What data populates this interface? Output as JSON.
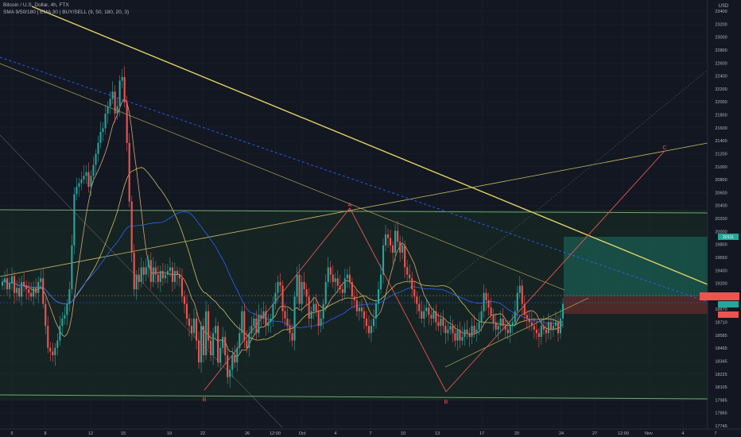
{
  "header": {
    "symbol_line": "Bitcoin / U.S. Dollar, 4h, FTX",
    "indicators_line": "SMA 9/50/180 | EMA 30 | BUY/SELL (9, 50, 180, 20, 3)"
  },
  "price_axis": {
    "currency": "USD",
    "ticks": [
      "23400",
      "23200",
      "23000",
      "22800",
      "22600",
      "22400",
      "22200",
      "22000",
      "21800",
      "21600",
      "21400",
      "21200",
      "21000",
      "20800",
      "20600",
      "20400",
      "20200",
      "20000",
      "19800",
      "19650",
      "19400",
      "19200",
      "19030",
      "18870",
      "18710",
      "18585",
      "18465",
      "18345",
      "18225",
      "18105",
      "17985",
      "17865",
      "17745"
    ],
    "badge_value": "20111"
  },
  "time_axis": {
    "labels": [
      "5",
      "8",
      "12",
      "15",
      "19",
      "22",
      "26",
      "12:00",
      "Oct",
      "4",
      "7",
      "10",
      "13",
      "17",
      "20",
      "24",
      "27",
      "12:00",
      "Nov",
      "4",
      "7"
    ]
  },
  "annotations": {
    "label_a": "A",
    "label_b1": "B",
    "label_b2": "B",
    "label_c": "C"
  },
  "colors": {
    "background": "#131722",
    "candle_up": "#26a69a",
    "candle_down": "#ef5350",
    "trendline": "#e2d463",
    "sma_fast": "#c0a050",
    "sma_slow": "#2962ff",
    "profit_zone": "#1a5c52",
    "loss_zone": "#5c2a2a"
  },
  "chart_data": {
    "type": "candlestick",
    "symbol": "Bitcoin / U.S. Dollar",
    "timeframe": "4h",
    "y_range": [
      17745,
      23400
    ],
    "closes": [
      19700,
      19750,
      19600,
      19680,
      19780,
      19550,
      19620,
      19500,
      19700,
      19650,
      19600,
      19550,
      19500,
      19620,
      19550,
      19700,
      19750,
      19400,
      19100,
      18800,
      18750,
      18700,
      18800,
      18900,
      19100,
      19200,
      19250,
      19400,
      19600,
      20200,
      20900,
      21000,
      21050,
      21100,
      21150,
      21200,
      21000,
      21150,
      21300,
      21450,
      21600,
      21750,
      21800,
      22000,
      22100,
      22200,
      22300,
      22000,
      22100,
      22450,
      22500,
      22150,
      21600,
      20800,
      20100,
      19600,
      19800,
      19700,
      19900,
      19800,
      19900,
      20000,
      19700,
      19900,
      19800,
      19700,
      19850,
      19750,
      19800,
      19850,
      19900,
      19700,
      19850,
      19800,
      19750,
      19500,
      19400,
      19200,
      19100,
      19000,
      19200,
      18900,
      18600,
      19100,
      18700,
      19300,
      18900,
      18700,
      19000,
      19100,
      18600,
      18800,
      18950,
      18700,
      18400,
      18500,
      18700,
      18600,
      18800,
      19000,
      19300,
      18900,
      18800,
      19000,
      19100,
      19200,
      19000,
      19250,
      19200,
      19300,
      19100,
      19150,
      19200,
      19400,
      19550,
      19700,
      19650,
      19300,
      19200,
      19100,
      19000,
      18900,
      19500,
      19800,
      19400,
      19700,
      19600,
      19500,
      19200,
      19300,
      19400,
      19300,
      19100,
      19200,
      19400,
      19700,
      19900,
      19800,
      19700,
      19750,
      19650,
      19600,
      19550,
      19750,
      19800,
      19700,
      19500,
      19450,
      19300,
      19350,
      19300,
      19200,
      19100,
      19000,
      19100,
      19200,
      19400,
      19600,
      19800,
      20200,
      20350,
      20300,
      20200,
      20100,
      20400,
      20250,
      20100,
      20200,
      19900,
      19800,
      19750,
      19600,
      19500,
      19400,
      19300,
      19200,
      19300,
      19350,
      19250,
      19200,
      19300,
      19150,
      19100,
      19200,
      19100,
      19000,
      19050,
      19100,
      19000,
      18900,
      19050,
      18900,
      18950,
      19050,
      19000,
      18950,
      19100,
      19000,
      19050,
      19150,
      19300,
      19550,
      19450,
      19350,
      19250,
      19150,
      19050,
      19100,
      19200,
      19100,
      19050,
      19000,
      19100,
      19150,
      19300,
      19550,
      19650,
      19400,
      19250,
      19200,
      19150,
      19100,
      19050,
      19000,
      18950,
      19100,
      19050,
      19000,
      19150,
      19050,
      19100,
      19150,
      19000,
      19200,
      19400
    ]
  }
}
